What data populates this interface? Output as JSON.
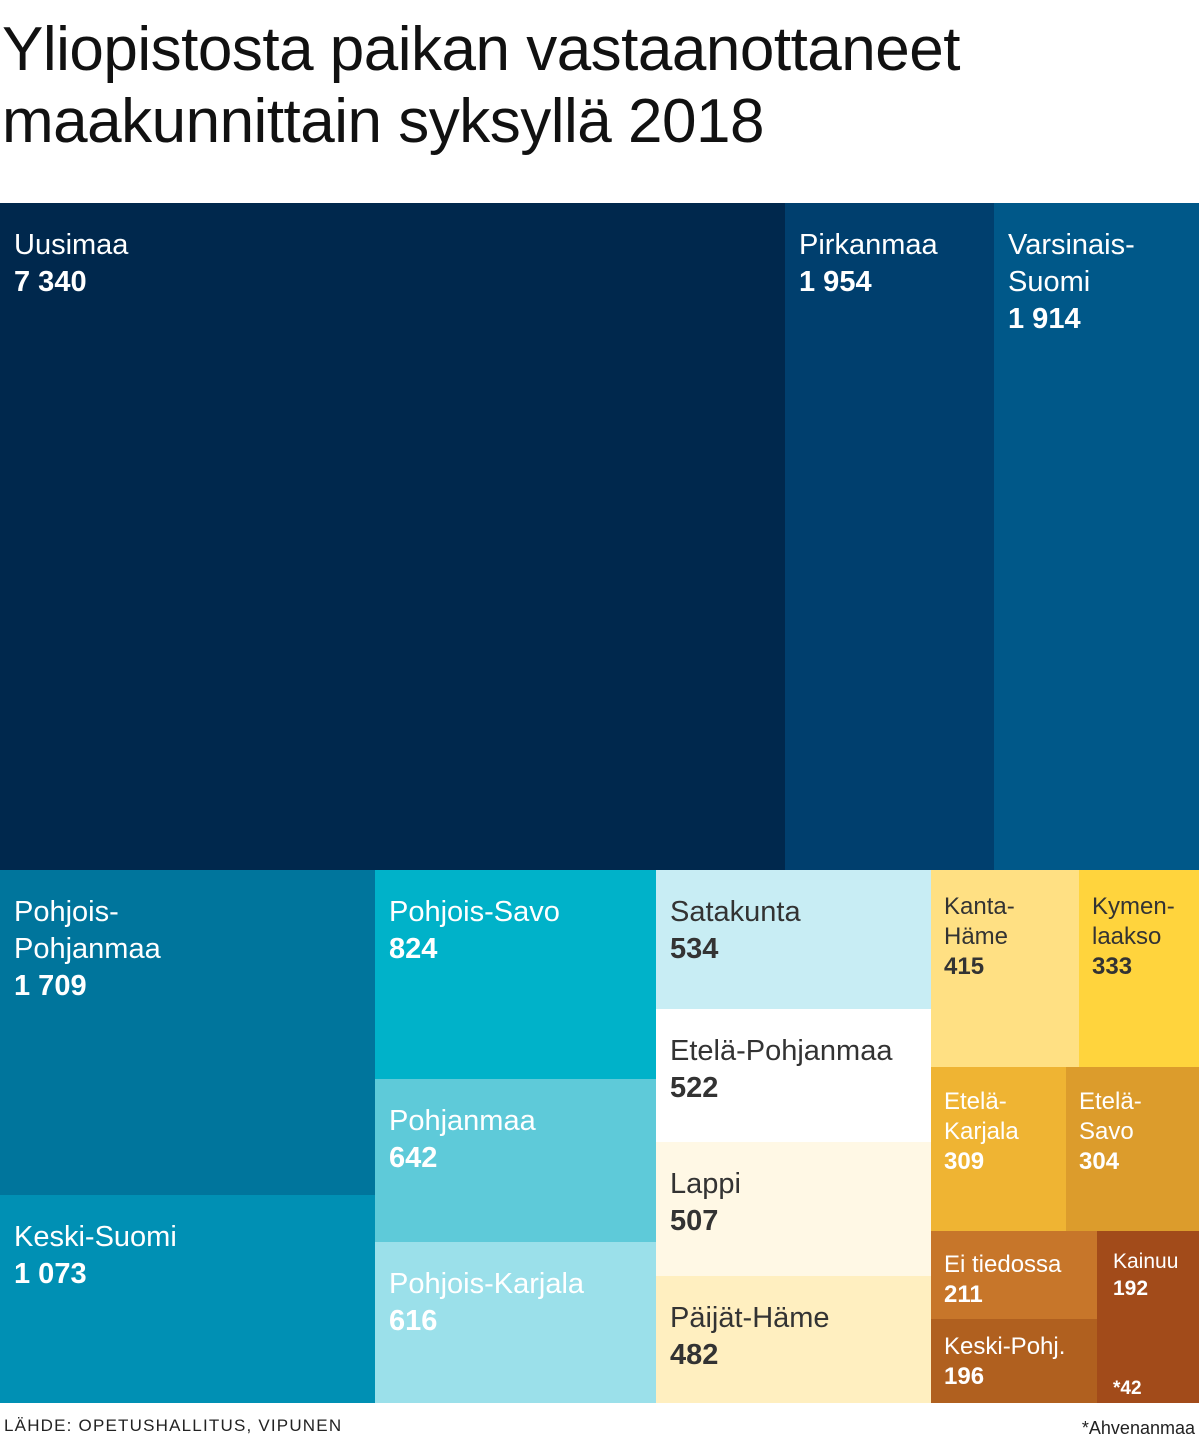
{
  "title": "Yliopistosta paikan vastaanottaneet maakunnittain syksyllä 2018",
  "source": "LÄHDE: OPETUSHALLITUS, VIPUNEN",
  "footnote": "*Ahvenanmaa",
  "chart_data": {
    "type": "treemap",
    "title": "Yliopistosta paikan vastaanottaneet maakunnittain syksyllä 2018",
    "items": [
      {
        "name": "Uusimaa",
        "value": 7340,
        "label": "7 340",
        "color": "#00284d",
        "text_color": "#ffffff"
      },
      {
        "name": "Pirkanmaa",
        "value": 1954,
        "label": "1 954",
        "color": "#003f6e",
        "text_color": "#ffffff"
      },
      {
        "name": "Varsinais-\nSuomi",
        "value": 1914,
        "label": "1 914",
        "color": "#005889",
        "text_color": "#ffffff"
      },
      {
        "name": "Pohjois-\nPohjanmaa",
        "value": 1709,
        "label": "1 709",
        "color": "#00759c",
        "text_color": "#ffffff"
      },
      {
        "name": "Keski-Suomi",
        "value": 1073,
        "label": "1 073",
        "color": "#0090b4",
        "text_color": "#ffffff"
      },
      {
        "name": "Pohjois-Savo",
        "value": 824,
        "label": "824",
        "color": "#00b2c9",
        "text_color": "#ffffff"
      },
      {
        "name": "Pohjanmaa",
        "value": 642,
        "label": "642",
        "color": "#5ecad9",
        "text_color": "#ffffff"
      },
      {
        "name": "Pohjois-Karjala",
        "value": 616,
        "label": "616",
        "color": "#9be0ea",
        "text_color": "#ffffff"
      },
      {
        "name": "Satakunta",
        "value": 534,
        "label": "534",
        "color": "#c8edf4",
        "text_color": "#333333"
      },
      {
        "name": "Etelä-Pohjanmaa",
        "value": 522,
        "label": "522",
        "color": "#ffffff",
        "text_color": "#333333"
      },
      {
        "name": "Lappi",
        "value": 507,
        "label": "507",
        "color": "#fff8e5",
        "text_color": "#333333"
      },
      {
        "name": "Päijät-Häme",
        "value": 482,
        "label": "482",
        "color": "#ffefc0",
        "text_color": "#333333"
      },
      {
        "name": "Kanta-\nHäme",
        "value": 415,
        "label": "415",
        "color": "#ffe083",
        "text_color": "#333333"
      },
      {
        "name": "Kymen-\nlaakso",
        "value": 333,
        "label": "333",
        "color": "#ffd43d",
        "text_color": "#333333"
      },
      {
        "name": "Etelä-\nKarjala",
        "value": 309,
        "label": "309",
        "color": "#efb433",
        "text_color": "#ffffff"
      },
      {
        "name": "Etelä-\nSavo",
        "value": 304,
        "label": "304",
        "color": "#dc9c2c",
        "text_color": "#ffffff"
      },
      {
        "name": "Ei tiedossa",
        "value": 211,
        "label": "211",
        "color": "#c7762a",
        "text_color": "#ffffff"
      },
      {
        "name": "Kainuu",
        "value": 192,
        "label": "192",
        "color": "#a24b1a",
        "text_color": "#ffffff"
      },
      {
        "name": "Keski-Pohj.",
        "value": 196,
        "label": "196",
        "color": "#b0601f",
        "text_color": "#ffffff"
      },
      {
        "name": "",
        "value": 42,
        "label": "*42",
        "color": "#a24b1a",
        "text_color": "#ffffff"
      }
    ]
  }
}
